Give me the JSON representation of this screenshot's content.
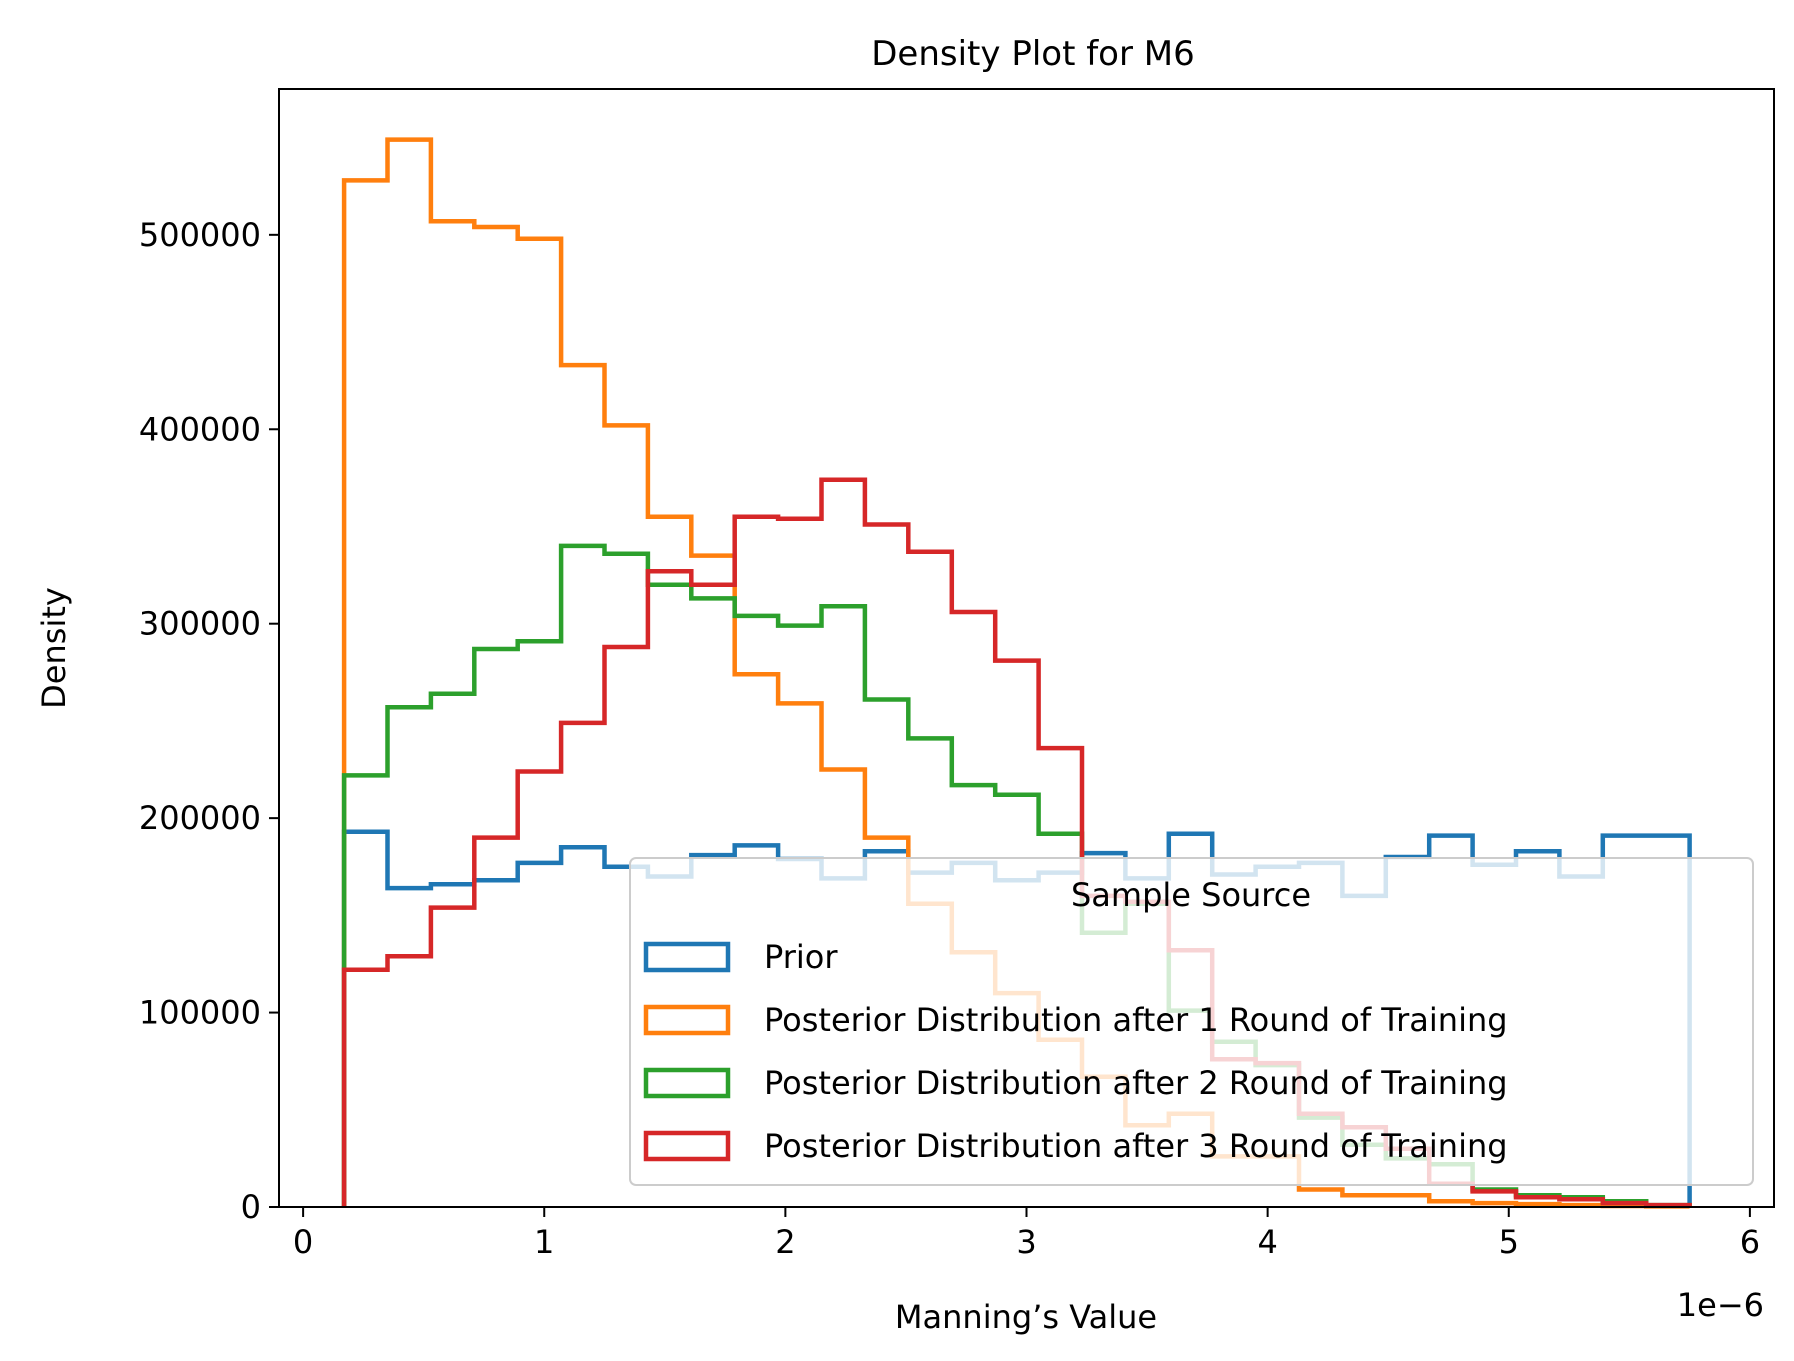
{
  "chart_data": {
    "type": "histogram",
    "title": "Density Plot for M6",
    "xlabel": "Manning’s Value",
    "ylabel": "Density",
    "x_offset_label": "1e−6",
    "x_multiplier": 1e-06,
    "xlim": [
      -0.1,
      6.1
    ],
    "ylim": [
      0,
      575000
    ],
    "x_ticks": [
      0,
      1,
      2,
      3,
      4,
      5,
      6
    ],
    "x_tick_labels": [
      "0",
      "1",
      "2",
      "3",
      "4",
      "5",
      "6"
    ],
    "y_ticks": [
      0,
      100000,
      200000,
      300000,
      400000,
      500000
    ],
    "y_tick_labels": [
      "0",
      "100000",
      "200000",
      "300000",
      "400000",
      "500000"
    ],
    "bin_edges": [
      0.17,
      0.35,
      0.53,
      0.71,
      0.89,
      1.07,
      1.25,
      1.43,
      1.61,
      1.79,
      1.97,
      2.15,
      2.33,
      2.51,
      2.69,
      2.87,
      3.05,
      3.23,
      3.41,
      3.59,
      3.77,
      3.95,
      4.13,
      4.31,
      4.49,
      4.67,
      4.85,
      5.03,
      5.21,
      5.39,
      5.57,
      5.75
    ],
    "grid": false,
    "legend": {
      "title": "Sample Source",
      "position": "lower right"
    },
    "series": [
      {
        "name": "Prior",
        "color": "#1f77b4",
        "values": [
          193000,
          164000,
          166000,
          168000,
          177000,
          185000,
          175000,
          170000,
          181000,
          186000,
          179000,
          169000,
          183000,
          172000,
          177000,
          168000,
          172000,
          182000,
          169000,
          192000,
          171000,
          175000,
          177000,
          160000,
          180000,
          191000,
          176000,
          183000,
          170000,
          191000,
          191000
        ]
      },
      {
        "name": "Posterior Distribution after 1 Round of Training",
        "color": "#ff7f0e",
        "values": [
          528000,
          549000,
          507000,
          504000,
          498000,
          433000,
          402000,
          355000,
          335000,
          274000,
          259000,
          225000,
          190000,
          156000,
          131000,
          110000,
          86000,
          67000,
          42000,
          48000,
          26000,
          26000,
          9000,
          6000,
          6000,
          3000,
          2000,
          1500,
          1000,
          500,
          300
        ]
      },
      {
        "name": "Posterior Distribution after 2 Round of Training",
        "color": "#2ca02c",
        "values": [
          222000,
          257000,
          264000,
          287000,
          291000,
          340000,
          336000,
          320000,
          313000,
          304000,
          299000,
          309000,
          261000,
          241000,
          217000,
          212000,
          192000,
          141000,
          156000,
          101000,
          85000,
          73000,
          46000,
          32000,
          25000,
          22000,
          9000,
          6000,
          5000,
          3000,
          1000
        ]
      },
      {
        "name": "Posterior Distribution after 3 Round of Training",
        "color": "#d62728",
        "values": [
          122000,
          129000,
          154000,
          190000,
          224000,
          249000,
          288000,
          327000,
          320000,
          355000,
          354000,
          374000,
          351000,
          337000,
          306000,
          281000,
          236000,
          160000,
          157000,
          132000,
          76000,
          74000,
          48000,
          41000,
          30000,
          12000,
          8000,
          5000,
          4000,
          2000,
          1000
        ]
      }
    ]
  }
}
